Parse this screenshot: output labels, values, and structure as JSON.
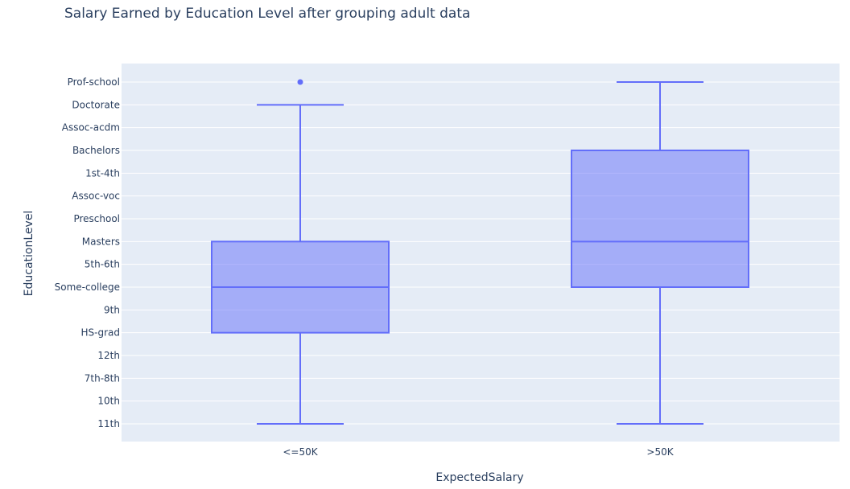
{
  "chart_data": {
    "type": "box",
    "title": "Salary Earned by Education Level after grouping adult data",
    "xlabel": "ExpectedSalary",
    "ylabel": "EducationLevel",
    "categories": [
      "<=50K",
      ">50K"
    ],
    "y_categories": [
      "11th",
      "10th",
      "7th-8th",
      "12th",
      "HS-grad",
      "9th",
      "Some-college",
      "5th-6th",
      "Masters",
      "Preschool",
      "Assoc-voc",
      "1st-4th",
      "Bachelors",
      "Assoc-acdm",
      "Doctorate",
      "Prof-school"
    ],
    "boxes": [
      {
        "category": "<=50K",
        "lower_fence": "11th",
        "q1": "HS-grad",
        "median": "Some-college",
        "q3": "Masters",
        "upper_fence": "Doctorate",
        "outliers": [
          "Prof-school"
        ]
      },
      {
        "category": ">50K",
        "lower_fence": "11th",
        "q1": "Some-college",
        "median": "Masters",
        "q3": "Bachelors",
        "upper_fence": "Prof-school",
        "outliers": []
      }
    ],
    "grid": true,
    "legend": "none",
    "colors": {
      "box_line": "#636efa",
      "box_fill": "rgba(99,110,250,0.5)",
      "plot_bg": "#e5ecf6",
      "grid": "#ffffff",
      "text": "#2a3f5f"
    }
  }
}
